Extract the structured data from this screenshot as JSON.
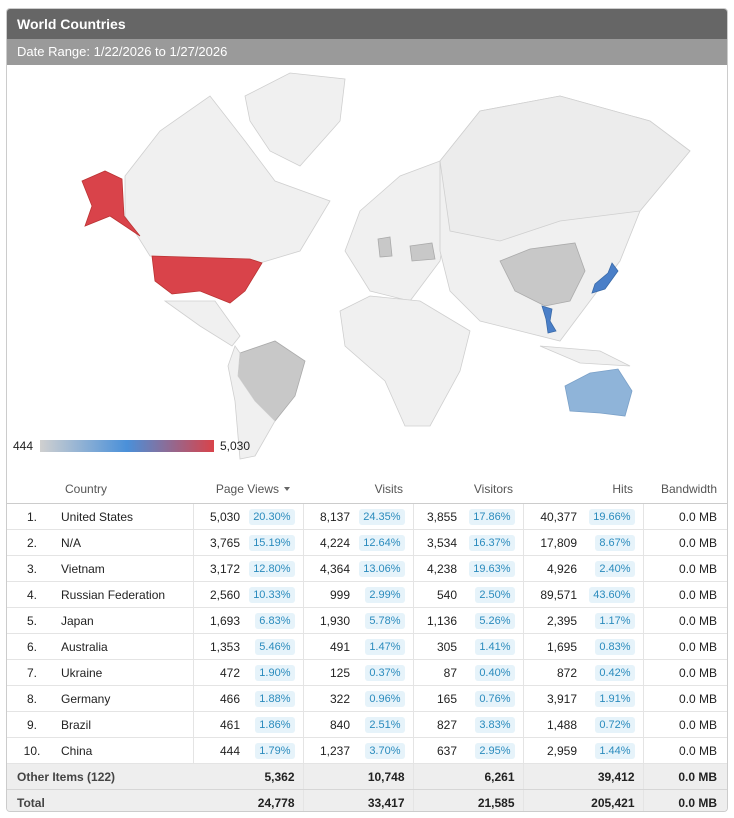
{
  "header": {
    "title": "World Countries",
    "date_range": "Date Range: 1/22/2026 to 1/27/2026"
  },
  "map": {
    "legend_min": "444",
    "legend_max": "5,030"
  },
  "table": {
    "columns": [
      "Country",
      "Page Views",
      "Visits",
      "Visitors",
      "Hits",
      "Bandwidth"
    ],
    "rows": [
      [
        "1.",
        "United States",
        "5,030",
        "20.30%",
        "8,137",
        "24.35%",
        "3,855",
        "17.86%",
        "40,377",
        "19.66%",
        "0.0 MB"
      ],
      [
        "2.",
        "N/A",
        "3,765",
        "15.19%",
        "4,224",
        "12.64%",
        "3,534",
        "16.37%",
        "17,809",
        "8.67%",
        "0.0 MB"
      ],
      [
        "3.",
        "Vietnam",
        "3,172",
        "12.80%",
        "4,364",
        "13.06%",
        "4,238",
        "19.63%",
        "4,926",
        "2.40%",
        "0.0 MB"
      ],
      [
        "4.",
        "Russian Federation",
        "2,560",
        "10.33%",
        "999",
        "2.99%",
        "540",
        "2.50%",
        "89,571",
        "43.60%",
        "0.0 MB"
      ],
      [
        "5.",
        "Japan",
        "1,693",
        "6.83%",
        "1,930",
        "5.78%",
        "1,136",
        "5.26%",
        "2,395",
        "1.17%",
        "0.0 MB"
      ],
      [
        "6.",
        "Australia",
        "1,353",
        "5.46%",
        "491",
        "1.47%",
        "305",
        "1.41%",
        "1,695",
        "0.83%",
        "0.0 MB"
      ],
      [
        "7.",
        "Ukraine",
        "472",
        "1.90%",
        "125",
        "0.37%",
        "87",
        "0.40%",
        "872",
        "0.42%",
        "0.0 MB"
      ],
      [
        "8.",
        "Germany",
        "466",
        "1.88%",
        "322",
        "0.96%",
        "165",
        "0.76%",
        "3,917",
        "1.91%",
        "0.0 MB"
      ],
      [
        "9.",
        "Brazil",
        "461",
        "1.86%",
        "840",
        "2.51%",
        "827",
        "3.83%",
        "1,488",
        "0.72%",
        "0.0 MB"
      ],
      [
        "10.",
        "China",
        "444",
        "1.79%",
        "1,237",
        "3.70%",
        "637",
        "2.95%",
        "2,959",
        "1.44%",
        "0.0 MB"
      ]
    ],
    "other": [
      "Other Items (122)",
      "5,362",
      "10,748",
      "6,261",
      "39,412",
      "0.0 MB"
    ],
    "total": [
      "Total",
      "24,778",
      "33,417",
      "21,585",
      "205,421",
      "0.0 MB"
    ]
  }
}
